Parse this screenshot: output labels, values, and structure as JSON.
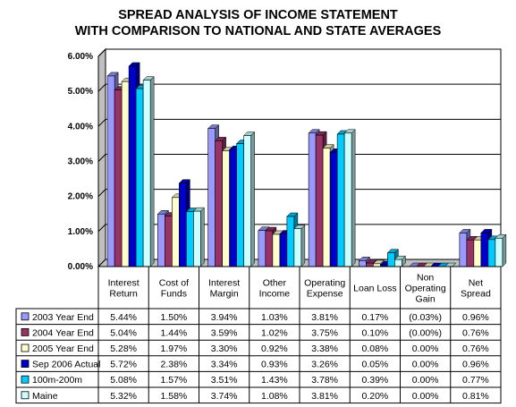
{
  "chart_data": {
    "type": "bar",
    "title_lines": [
      "SPREAD ANALYSIS OF INCOME STATEMENT",
      "WITH COMPARISON TO NATIONAL AND STATE AVERAGES"
    ],
    "categories": [
      [
        "Interest",
        "Return"
      ],
      [
        "Cost of",
        "Funds"
      ],
      [
        "Interest",
        "Margin"
      ],
      [
        "Other",
        "Income"
      ],
      [
        "Operating",
        "Expense"
      ],
      [
        "Loan Loss"
      ],
      [
        "Non",
        "Operating",
        "Gain"
      ],
      [
        "Net",
        "Spread"
      ]
    ],
    "ylim": [
      0,
      6
    ],
    "yticks": [
      0,
      1,
      2,
      3,
      4,
      5,
      6
    ],
    "ytick_labels": [
      "0.00%",
      "1.00%",
      "2.00%",
      "3.00%",
      "4.00%",
      "5.00%",
      "6.00%"
    ],
    "grid": true,
    "legend": "data-table",
    "series": [
      {
        "name": "2003 Year End",
        "color": "#9999ff",
        "values": [
          5.44,
          1.5,
          3.94,
          1.03,
          3.81,
          0.17,
          -0.03,
          0.96
        ],
        "labels": [
          "5.44%",
          "1.50%",
          "3.94%",
          "1.03%",
          "3.81%",
          "0.17%",
          "(0.03%)",
          "0.96%"
        ]
      },
      {
        "name": "2004 Year End",
        "color": "#993366",
        "values": [
          5.04,
          1.44,
          3.59,
          1.02,
          3.75,
          0.1,
          0.0,
          0.76
        ],
        "labels": [
          "5.04%",
          "1.44%",
          "3.59%",
          "1.02%",
          "3.75%",
          "0.10%",
          "(0.00%)",
          "0.76%"
        ]
      },
      {
        "name": "2005 Year End",
        "color": "#ffffcc",
        "values": [
          5.28,
          1.97,
          3.3,
          0.92,
          3.38,
          0.08,
          0.0,
          0.76
        ],
        "labels": [
          "5.28%",
          "1.97%",
          "3.30%",
          "0.92%",
          "3.38%",
          "0.08%",
          "0.00%",
          "0.76%"
        ]
      },
      {
        "name": "Sep 2006 Actual",
        "color": "#0000cc",
        "values": [
          5.72,
          2.38,
          3.34,
          0.93,
          3.26,
          0.05,
          0.0,
          0.96
        ],
        "labels": [
          "5.72%",
          "2.38%",
          "3.34%",
          "0.93%",
          "3.26%",
          "0.05%",
          "0.00%",
          "0.96%"
        ]
      },
      {
        "name": "100m-200m",
        "color": "#00ccff",
        "values": [
          5.08,
          1.57,
          3.51,
          1.43,
          3.78,
          0.39,
          0.0,
          0.77
        ],
        "labels": [
          "5.08%",
          "1.57%",
          "3.51%",
          "1.43%",
          "3.78%",
          "0.39%",
          "0.00%",
          "0.77%"
        ]
      },
      {
        "name": "Maine",
        "color": "#ccffff",
        "values": [
          5.32,
          1.58,
          3.74,
          1.08,
          3.81,
          0.2,
          0.0,
          0.81
        ],
        "labels": [
          "5.32%",
          "1.58%",
          "3.74%",
          "1.08%",
          "3.81%",
          "0.20%",
          "0.00%",
          "0.81%"
        ]
      }
    ]
  }
}
